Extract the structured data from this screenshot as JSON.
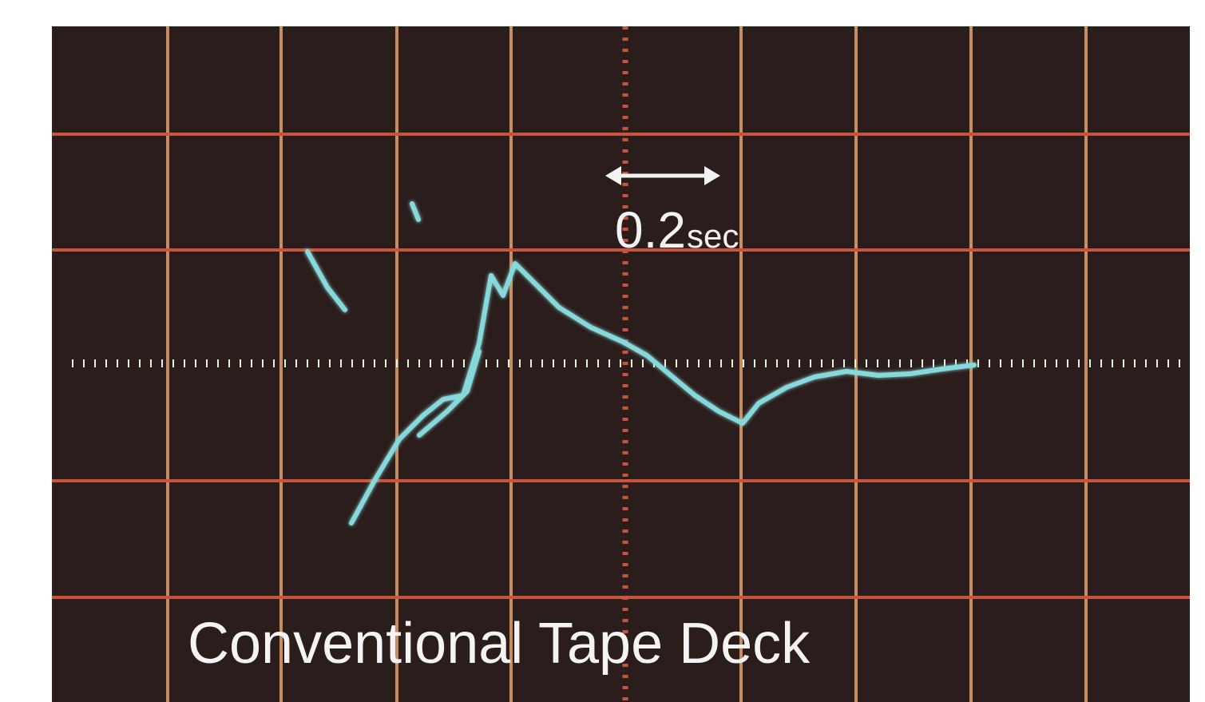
{
  "scale_marker": {
    "value": "0.2",
    "unit": "sec"
  },
  "caption": "Conventional Tape Deck"
}
